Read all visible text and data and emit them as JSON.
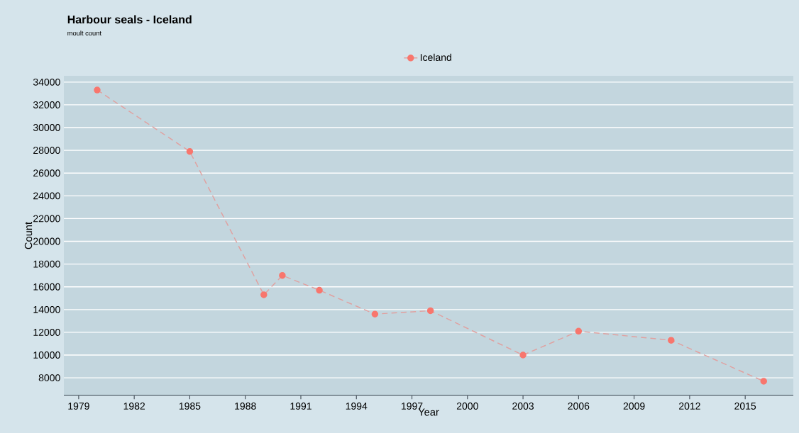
{
  "chart_data": {
    "type": "line",
    "title": "Harbour seals - Iceland",
    "subtitle": "moult count",
    "xlabel": "Year",
    "ylabel": "Count",
    "x": [
      1980,
      1985,
      1989,
      1990,
      1992,
      1995,
      1998,
      2003,
      2006,
      2011,
      2016
    ],
    "series": [
      {
        "name": "Iceland",
        "color": "#f8766d",
        "values": [
          33300,
          27900,
          15300,
          17000,
          15700,
          13600,
          13900,
          10000,
          12100,
          11300,
          7700
        ]
      }
    ],
    "xlim": [
      1978.2,
      2017.6
    ],
    "ylim": [
      6450,
      34550
    ],
    "xticks": [
      1979,
      1982,
      1985,
      1988,
      1991,
      1994,
      1997,
      2000,
      2003,
      2006,
      2009,
      2012,
      2015
    ],
    "yticks": [
      8000,
      10000,
      12000,
      14000,
      16000,
      18000,
      20000,
      22000,
      24000,
      26000,
      28000,
      30000,
      32000,
      34000
    ],
    "grid": "y",
    "legend": "top",
    "marker": "circle",
    "line_style": "dashed"
  }
}
